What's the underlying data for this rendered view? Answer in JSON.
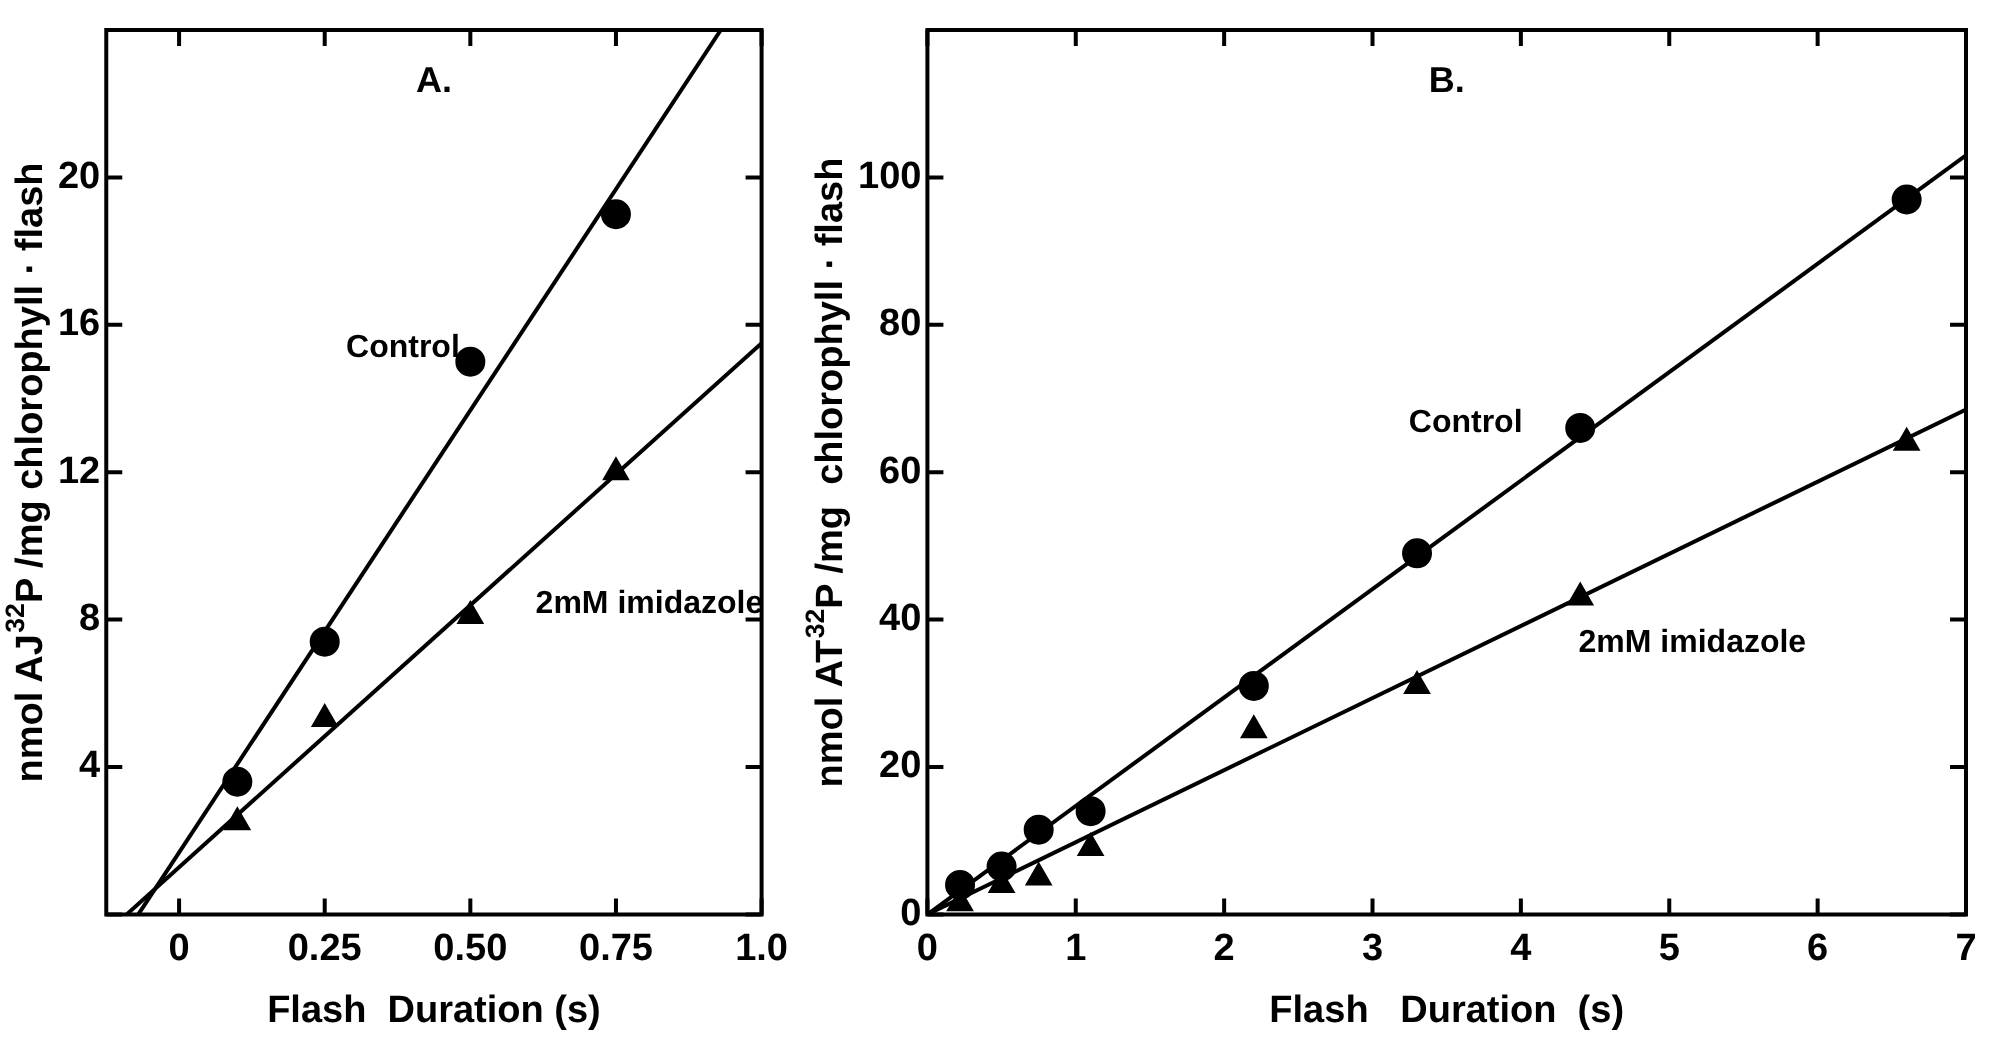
{
  "chart_data": [
    {
      "type": "scatter",
      "title": "A.",
      "xlabel": "Flash  Duration (s)",
      "ylabel": "nmol AJ$^{32}$P /mg chlorophyll · flash",
      "x": [
        0.1,
        0.25,
        0.5,
        0.75
      ],
      "xlim": [
        -0.125,
        1.0
      ],
      "xticks": [
        0,
        0.25,
        {
          "value": 0.5,
          "label": "0.50"
        },
        0.75,
        {
          "value": 1,
          "label": "1.0"
        }
      ],
      "ylim": [
        0,
        24
      ],
      "yticks": [
        {
          "value": 0,
          "label": null
        },
        4,
        8,
        12,
        16,
        20
      ],
      "series": [
        {
          "type": "scatter",
          "marker": "circle",
          "color": "#000000",
          "values": [
            3.6,
            7.4,
            15,
            19
          ]
        },
        {
          "type": "scatter",
          "marker": "triangle",
          "color": "#000000",
          "values": [
            2.5,
            5.3,
            8.1,
            12
          ]
        },
        {
          "type": "line",
          "name": "Control",
          "marker": "none",
          "color": "#000000",
          "x": [
            -0.07,
            0.93
          ],
          "values": [
            0,
            24
          ]
        },
        {
          "type": "line",
          "name": "2mM imidazole",
          "marker": "none",
          "color": "#000000",
          "x": [
            -0.09,
            1.0
          ],
          "values": [
            0,
            15.5
          ]
        }
      ],
      "grid": false,
      "legend": false
    },
    {
      "type": "scatter",
      "title": "B.",
      "xlabel": "Flash   Duration  (s)",
      "ylabel": "nmol AT$^{32}$P /mg  chlorophyll · flash",
      "x": [
        0.22,
        0.5,
        0.75,
        1.1,
        2.2,
        3.3,
        4.4,
        6.6
      ],
      "xlim": [
        0,
        7
      ],
      "xticks": [
        0,
        1,
        2,
        3,
        4,
        5,
        6,
        7
      ],
      "ylim": [
        0,
        120
      ],
      "yticks": [
        0,
        20,
        40,
        60,
        80,
        100
      ],
      "series": [
        {
          "type": "scatter",
          "marker": "circle",
          "color": "#000000",
          "values": [
            4,
            6.5,
            11.5,
            14,
            31,
            49,
            66,
            97
          ]
        },
        {
          "type": "scatter",
          "marker": "triangle",
          "color": "#000000",
          "values": [
            1.5,
            4,
            5,
            9,
            25,
            31,
            43,
            64
          ]
        },
        {
          "type": "line",
          "name": "Control",
          "marker": "none",
          "color": "#000000",
          "x": [
            0,
            7
          ],
          "values": [
            0,
            103
          ]
        },
        {
          "type": "line",
          "name": "2mM imidazole",
          "marker": "none",
          "color": "#000000",
          "x": [
            0,
            7
          ],
          "values": [
            0,
            68.5
          ]
        }
      ],
      "grid": false,
      "legend": false
    }
  ]
}
